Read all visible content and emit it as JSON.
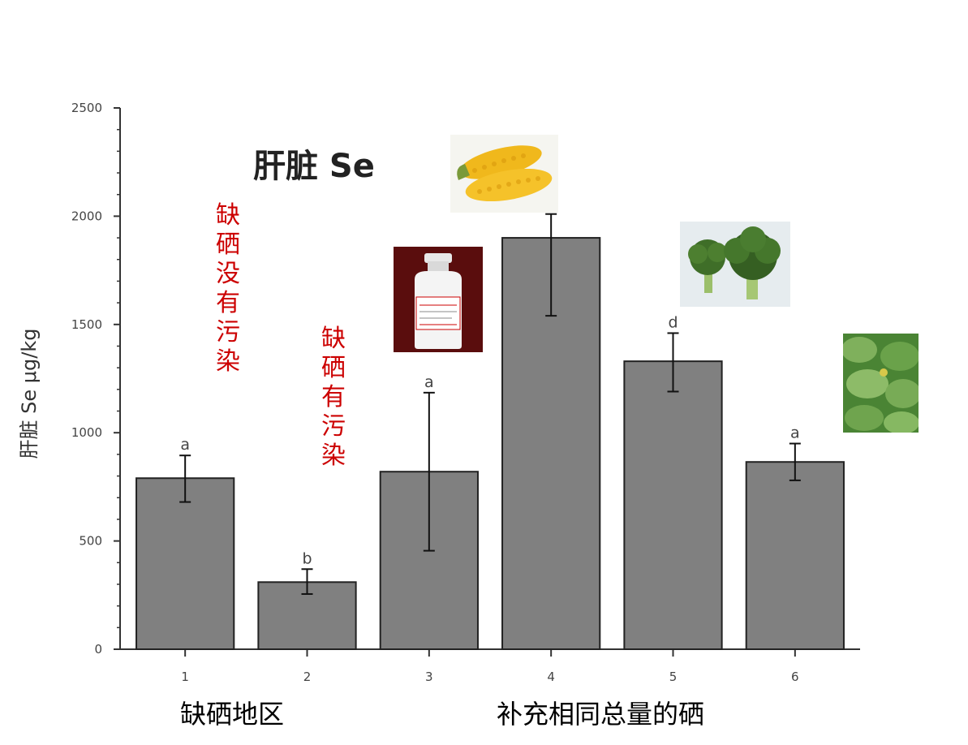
{
  "chart_data": {
    "type": "bar",
    "title": "肝脏 Se",
    "ylabel": "肝脏 Se μg/kg",
    "xlabel": "",
    "ylim": [
      0,
      2500
    ],
    "yticks": [
      0,
      500,
      1000,
      1500,
      2000,
      2500
    ],
    "categories": [
      "1",
      "2",
      "3",
      "4",
      "5",
      "6"
    ],
    "values": [
      790,
      310,
      820,
      1900,
      1330,
      865
    ],
    "error_low": [
      680,
      255,
      455,
      1540,
      1190,
      780
    ],
    "error_high": [
      895,
      370,
      1185,
      2010,
      1460,
      950
    ],
    "significance": [
      "a",
      "b",
      "a",
      "",
      "d",
      "a"
    ],
    "bar_color": "#808080",
    "grid": false
  },
  "annotations": {
    "note_region1": "缺硒没有污染",
    "note_region2": "缺硒有污染",
    "group_deficient": "缺硒地区",
    "group_supplement": "补充相同总量的硒"
  },
  "images": {
    "bar3": "selenium-reagent-bottle",
    "bar4": "corn",
    "bar5": "broccoli",
    "bar6": "leafy-greens"
  }
}
